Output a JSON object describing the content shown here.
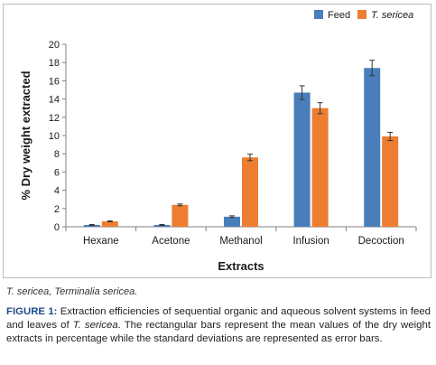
{
  "chart_data": {
    "type": "bar",
    "categories": [
      "Hexane",
      "Acetone",
      "Methanol",
      "Infusion",
      "Decoction"
    ],
    "series": [
      {
        "name": "Feed",
        "values": [
          0.2,
          0.2,
          1.1,
          14.7,
          17.4
        ],
        "errors": [
          0.05,
          0.05,
          0.1,
          0.75,
          0.85
        ],
        "color": "#4a7ebb"
      },
      {
        "name": "T. sericea",
        "values": [
          0.6,
          2.4,
          7.6,
          13.0,
          9.9
        ],
        "errors": [
          0.05,
          0.1,
          0.35,
          0.6,
          0.45
        ],
        "color": "#ed7d31"
      }
    ],
    "xlabel": "Extracts",
    "ylabel": "% Dry weight extracted",
    "ylim": [
      0,
      20
    ],
    "yticks": [
      0,
      2,
      4,
      6,
      8,
      10,
      12,
      14,
      16,
      18,
      20
    ],
    "legend_position": "top-right",
    "grid": false
  },
  "footnote": "T. sericea, Terminalia sericea.",
  "caption": {
    "label": "FIGURE 1:",
    "text_1": " Extraction efficiencies of sequential organic and aqueous solvent systems in feed and leaves of ",
    "species": "T. sericea",
    "text_2": ". The rectangular bars represent the mean values of the dry weight extracts in percentage while the standard deviations are represented as error bars."
  }
}
